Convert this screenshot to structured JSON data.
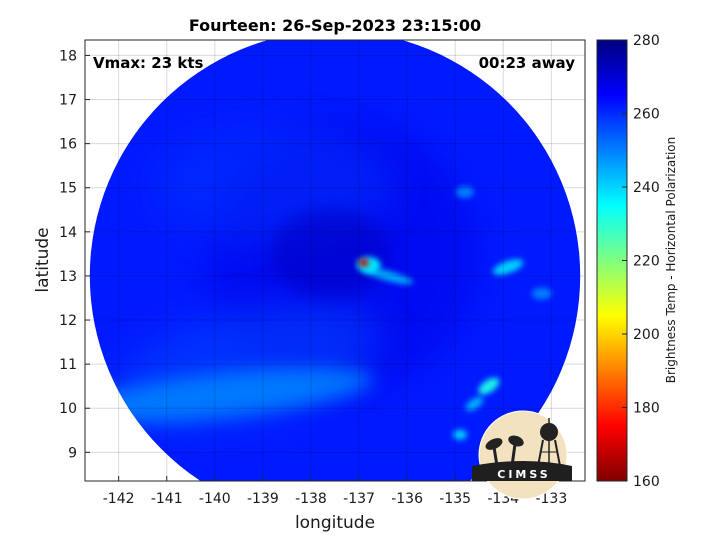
{
  "figure": {
    "title": "Fourteen: 26-Sep-2023 23:15:00",
    "xlabel": "longitude",
    "ylabel": "latitude",
    "vmax_label": "Vmax: 23 kts",
    "time_label": "00:23 away",
    "colorbar_label": "Brightness Temp - Horizontal Polarization",
    "logo_text": "CIMSS"
  },
  "chart_data": {
    "type": "heatmap",
    "title": "Fourteen: 26-Sep-2023 23:15:00",
    "xlabel": "longitude",
    "ylabel": "latitude",
    "xlim": [
      -142.7,
      -132.3
    ],
    "ylim": [
      8.35,
      18.35
    ],
    "x_ticks": [
      -142,
      -141,
      -140,
      -139,
      -138,
      -137,
      -136,
      -135,
      -134,
      -133
    ],
    "x_tick_labels": [
      "-142",
      "-141",
      "-140",
      "-139",
      "-138",
      "-137",
      "-136",
      "-135",
      "-134",
      "-133"
    ],
    "y_ticks": [
      9,
      10,
      11,
      12,
      13,
      14,
      15,
      16,
      17,
      18
    ],
    "y_tick_labels": [
      "9",
      "10",
      "11",
      "12",
      "13",
      "14",
      "15",
      "16",
      "17",
      "18"
    ],
    "grid": true,
    "colorbar": {
      "label": "Brightness Temp - Horizontal Polarization",
      "min": 160,
      "max": 280,
      "ticks": [
        160,
        180,
        200,
        220,
        240,
        260,
        280
      ],
      "tick_labels": [
        "160",
        "180",
        "200",
        "220",
        "240",
        "260",
        "280"
      ],
      "colormap": "jet"
    },
    "swath_center": {
      "lon": -137.5,
      "lat": 13.0
    },
    "swath_radius_deg": 5.1,
    "background_value": 262,
    "features": [
      {
        "name": "core-minimum",
        "lon": -136.9,
        "lat": 13.3,
        "value": 170
      },
      {
        "name": "core-ring",
        "lon": -136.8,
        "lat": 13.25,
        "value": 235
      },
      {
        "name": "band-east",
        "lon": -136.4,
        "lat": 13.0,
        "value": 242
      },
      {
        "name": "cell-east-1",
        "lon": -133.9,
        "lat": 13.2,
        "value": 238
      },
      {
        "name": "cell-east-2",
        "lon": -133.2,
        "lat": 12.6,
        "value": 245
      },
      {
        "name": "cell-southeast-1",
        "lon": -134.3,
        "lat": 10.5,
        "value": 232
      },
      {
        "name": "cell-southeast-2",
        "lon": -134.6,
        "lat": 10.1,
        "value": 240
      },
      {
        "name": "cell-southeast-3",
        "lon": -134.9,
        "lat": 9.4,
        "value": 238
      },
      {
        "name": "cell-north",
        "lon": -134.8,
        "lat": 14.9,
        "value": 245
      },
      {
        "name": "warm-band-south",
        "lon": -139.8,
        "lat": 10.3,
        "value": 248
      },
      {
        "name": "cold-patch-center",
        "lon": -137.6,
        "lat": 13.5,
        "value": 272
      }
    ]
  }
}
